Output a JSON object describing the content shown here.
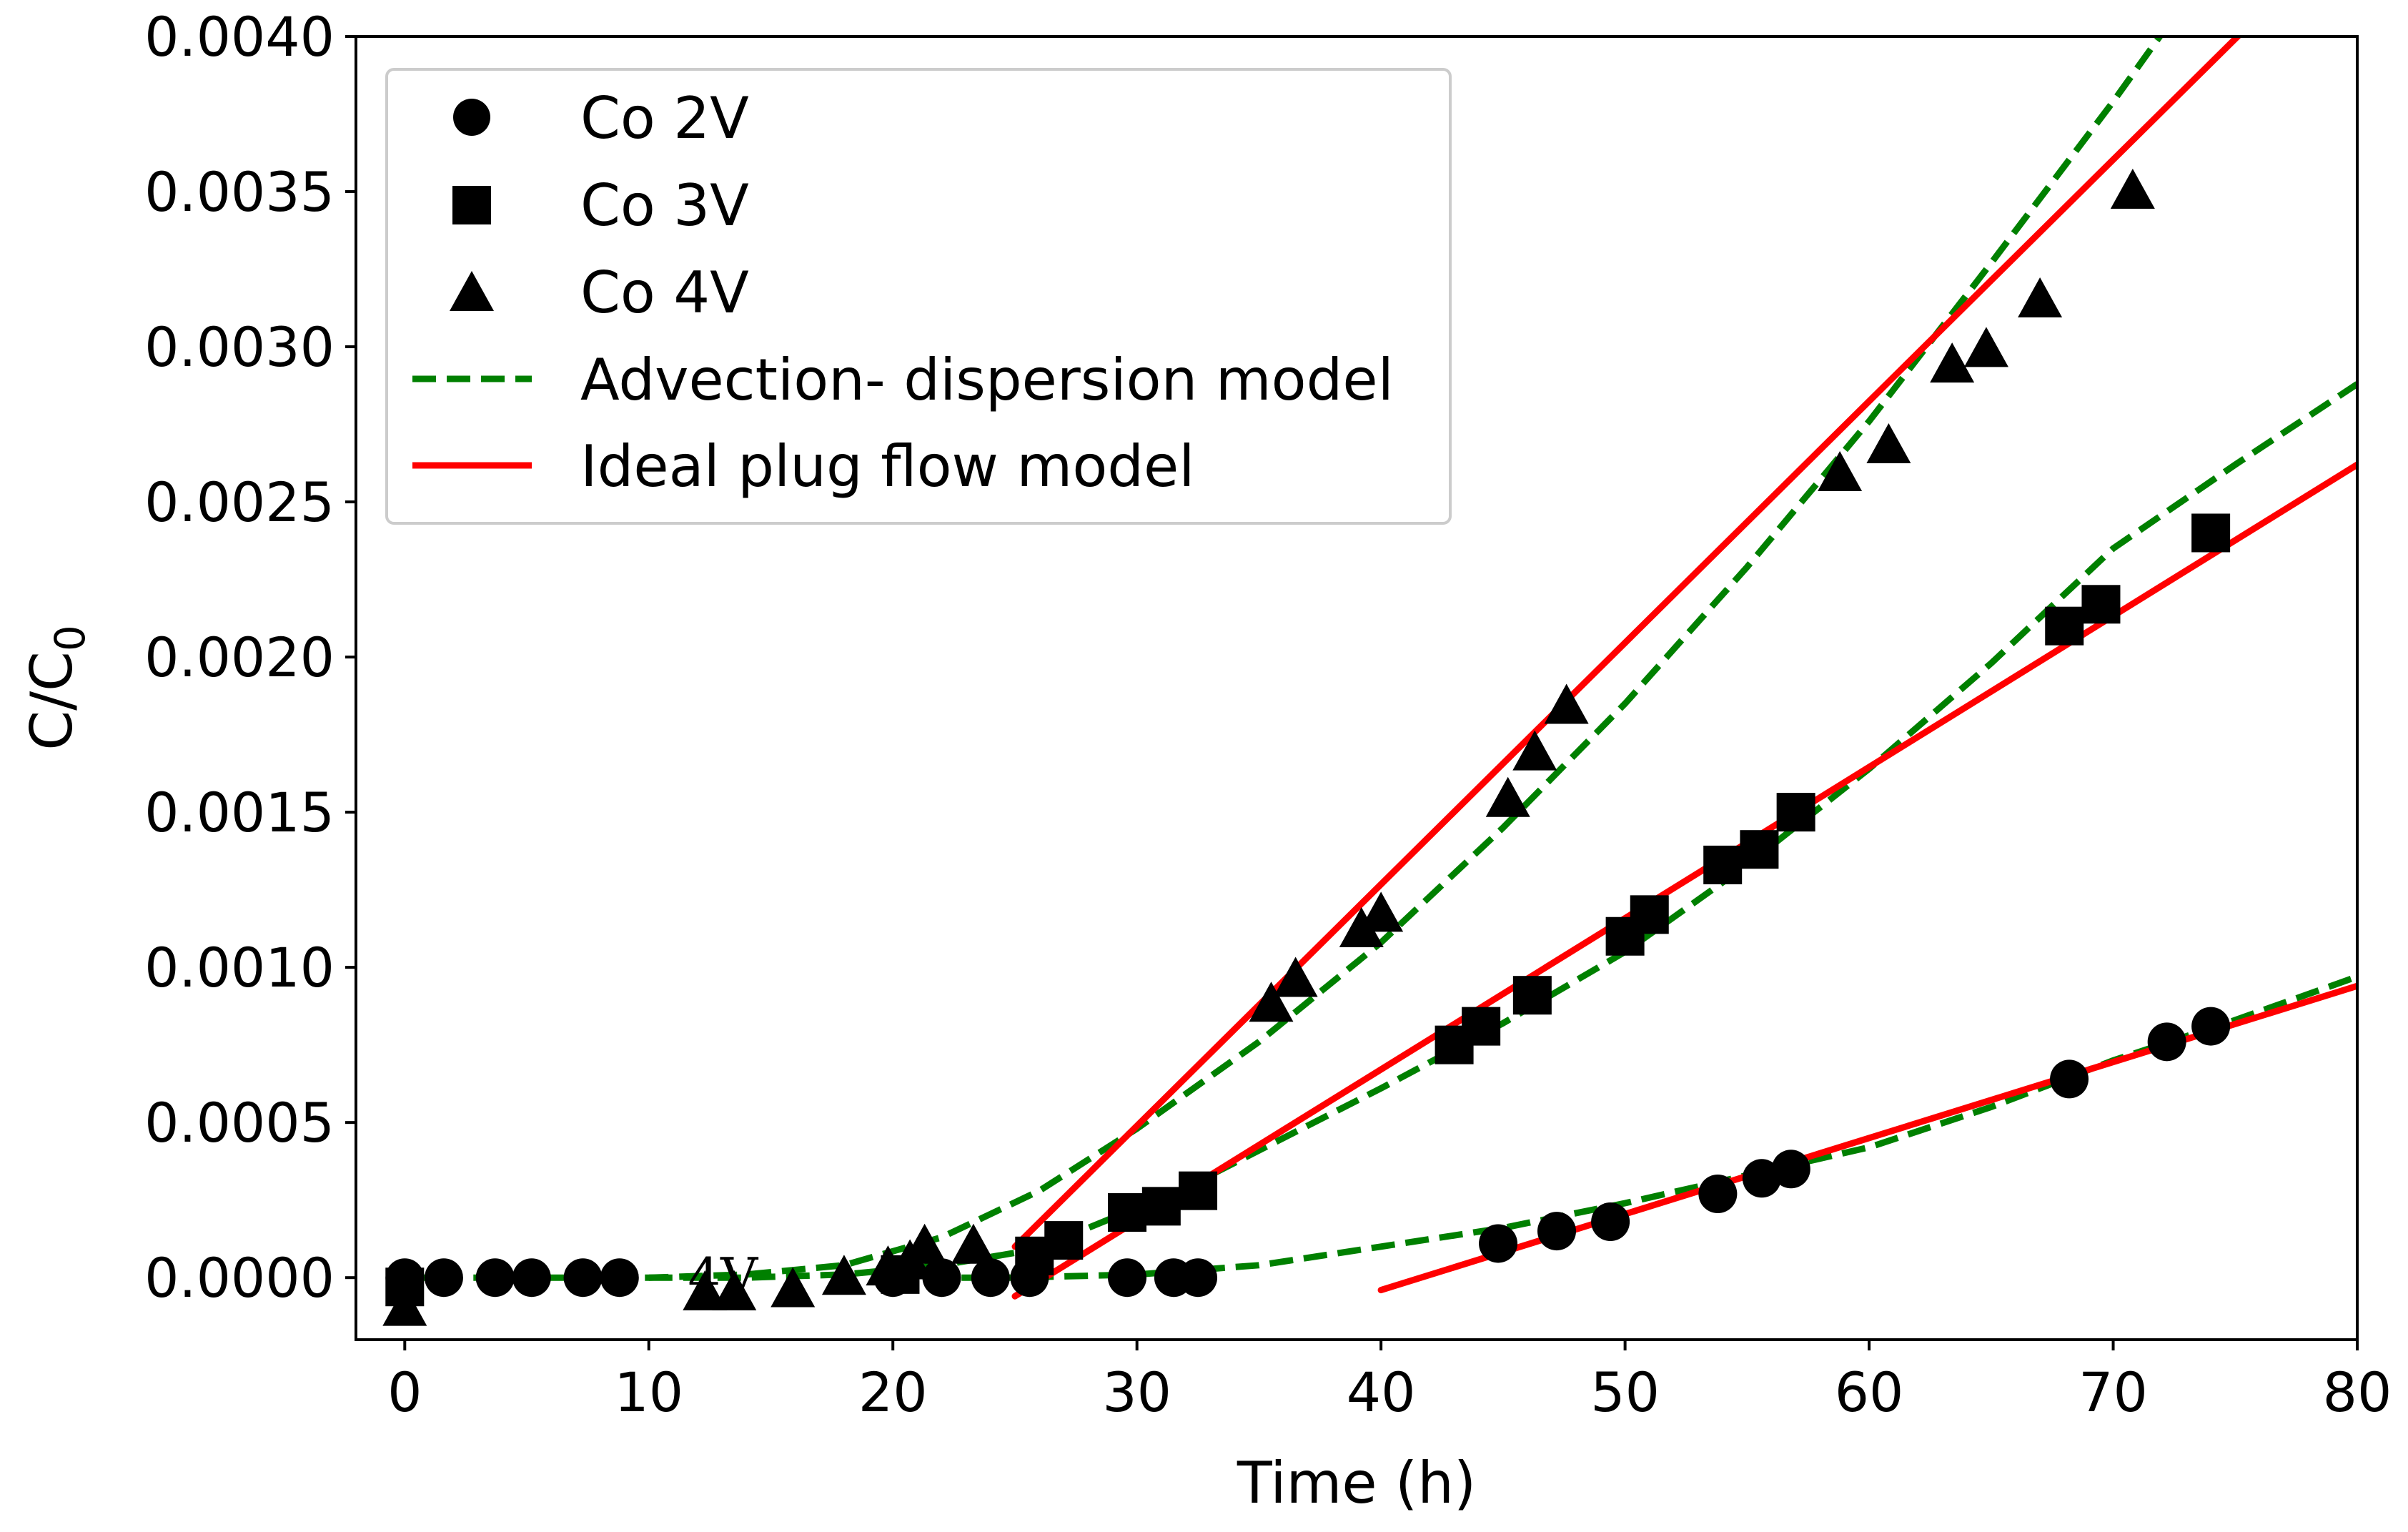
{
  "chart_data": {
    "type": "scatter",
    "title": "",
    "xlabel": "Time (h)",
    "ylabel": "C/C",
    "ylabel_subscript": "0",
    "xlim": [
      -2,
      80
    ],
    "ylim": [
      -0.0002,
      0.004
    ],
    "x_ticks": [
      0,
      10,
      20,
      30,
      40,
      50,
      60,
      70,
      80
    ],
    "x_tick_labels": [
      "0",
      "10",
      "20",
      "30",
      "40",
      "50",
      "60",
      "70",
      "80"
    ],
    "y_ticks": [
      0,
      0.0005,
      0.001,
      0.0015,
      0.002,
      0.0025,
      0.003,
      0.0035,
      0.004
    ],
    "y_tick_labels": [
      "0.0000",
      "0.0005",
      "0.0010",
      "0.0015",
      "0.0020",
      "0.0025",
      "0.0030",
      "0.0035",
      "0.0040"
    ],
    "grid": false,
    "legend_position": "top-left",
    "annotation": "4V",
    "annotation_x": 11.6,
    "annotation_y": 0.0,
    "series": [
      {
        "name": "Co 2V",
        "marker": "circle",
        "color": "#000000",
        "points": [
          [
            0,
            0
          ],
          [
            1.6,
            0
          ],
          [
            3.7,
            0
          ],
          [
            5.2,
            0
          ],
          [
            7.3,
            0
          ],
          [
            8.8,
            0
          ],
          [
            20.0,
            0
          ],
          [
            22.0,
            0
          ],
          [
            24.0,
            0
          ],
          [
            25.6,
            0
          ],
          [
            29.6,
            0
          ],
          [
            31.5,
            0
          ],
          [
            32.5,
            0
          ],
          [
            44.8,
            0.00011
          ],
          [
            47.2,
            0.00015
          ],
          [
            49.4,
            0.00018
          ],
          [
            53.8,
            0.00027
          ],
          [
            55.6,
            0.00032
          ],
          [
            56.8,
            0.00035
          ],
          [
            68.2,
            0.00064
          ],
          [
            72.2,
            0.00076
          ],
          [
            74.0,
            0.00081
          ]
        ]
      },
      {
        "name": "Co 3V",
        "marker": "square",
        "color": "#000000",
        "points": [
          [
            0,
            -3e-05
          ],
          [
            20.3,
            1e-05
          ],
          [
            25.8,
            7e-05
          ],
          [
            27.0,
            0.00012
          ],
          [
            29.6,
            0.00021
          ],
          [
            31.0,
            0.00023
          ],
          [
            32.5,
            0.00028
          ],
          [
            43.0,
            0.00075
          ],
          [
            44.1,
            0.00081
          ],
          [
            46.2,
            0.00091
          ],
          [
            50.0,
            0.0011
          ],
          [
            51.0,
            0.00117
          ],
          [
            54.0,
            0.00133
          ],
          [
            55.5,
            0.00138
          ],
          [
            57.0,
            0.0015
          ],
          [
            68.0,
            0.0021
          ],
          [
            69.5,
            0.00217
          ],
          [
            74.0,
            0.0024
          ]
        ]
      },
      {
        "name": "Co 4V",
        "marker": "triangle",
        "color": "#000000",
        "points": [
          [
            0,
            -0.0001
          ],
          [
            12.3,
            -5e-05
          ],
          [
            13.5,
            -5e-05
          ],
          [
            15.9,
            -4e-05
          ],
          [
            18.0,
            0.0
          ],
          [
            19.8,
            3e-05
          ],
          [
            20.7,
            5e-05
          ],
          [
            21.3,
            0.0001
          ],
          [
            23.3,
            0.0001
          ],
          [
            35.5,
            0.00088
          ],
          [
            36.5,
            0.00096
          ],
          [
            39.2,
            0.00112
          ],
          [
            40.0,
            0.00117
          ],
          [
            45.2,
            0.00154
          ],
          [
            46.3,
            0.00169
          ],
          [
            47.6,
            0.00184
          ],
          [
            58.8,
            0.00259
          ],
          [
            60.8,
            0.00268
          ],
          [
            63.4,
            0.00294
          ],
          [
            64.8,
            0.00299
          ],
          [
            67.0,
            0.00315
          ],
          [
            70.8,
            0.0035
          ]
        ]
      },
      {
        "name": "Advection- dispersion model",
        "style": "dashed",
        "color": "#008000",
        "sub_curves": [
          [
            [
              0,
              0
            ],
            [
              10,
              0.0
            ],
            [
              14,
              1e-05
            ],
            [
              18,
              4e-05
            ],
            [
              22,
              0.00013
            ],
            [
              26,
              0.00028
            ],
            [
              30,
              0.00048
            ],
            [
              35,
              0.00076
            ],
            [
              40,
              0.00108
            ],
            [
              45,
              0.00145
            ],
            [
              50,
              0.00185
            ],
            [
              55,
              0.00229
            ],
            [
              60,
              0.00276
            ],
            [
              65,
              0.00327
            ],
            [
              70,
              0.00379
            ],
            [
              73,
              0.00412
            ]
          ],
          [
            [
              10,
              0.0
            ],
            [
              14,
              0.0
            ],
            [
              18,
              1e-05
            ],
            [
              22,
              4e-05
            ],
            [
              25,
              8e-05
            ],
            [
              28,
              0.00016
            ],
            [
              32,
              0.00029
            ],
            [
              36,
              0.00045
            ],
            [
              40,
              0.00061
            ],
            [
              45,
              0.00082
            ],
            [
              50,
              0.00105
            ],
            [
              55,
              0.00133
            ],
            [
              60,
              0.00164
            ],
            [
              65,
              0.00198
            ],
            [
              70,
              0.00235
            ],
            [
              75,
              0.00262
            ],
            [
              80,
              0.00288
            ]
          ],
          [
            [
              20,
              0.0
            ],
            [
              25,
              0.0
            ],
            [
              30,
              1e-05
            ],
            [
              35,
              4e-05
            ],
            [
              40,
              0.0001
            ],
            [
              45,
              0.00016
            ],
            [
              50,
              0.00024
            ],
            [
              55,
              0.00033
            ],
            [
              60,
              0.00042
            ],
            [
              65,
              0.00055
            ],
            [
              70,
              0.0007
            ],
            [
              75,
              0.00083
            ],
            [
              80,
              0.00097
            ]
          ]
        ]
      },
      {
        "name": "Ideal plug flow model",
        "style": "solid",
        "color": "#ff0000",
        "sub_curves": [
          [
            [
              25,
              0.0001
            ],
            [
              76,
              0.00407
            ]
          ],
          [
            [
              25,
              -6e-05
            ],
            [
              80,
              0.00262
            ]
          ],
          [
            [
              40,
              -4e-05
            ],
            [
              80,
              0.00094
            ]
          ]
        ]
      }
    ]
  }
}
